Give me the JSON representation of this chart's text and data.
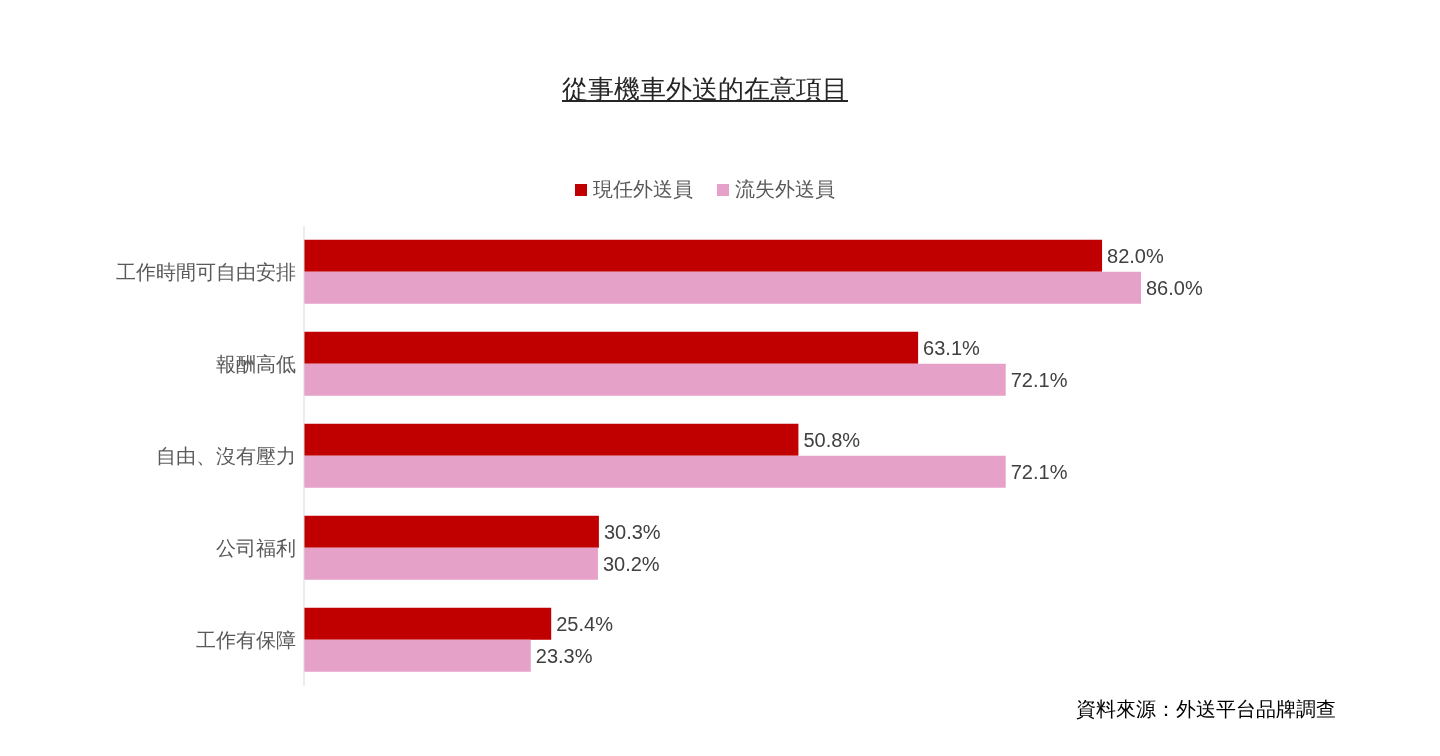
{
  "chart_data": {
    "type": "bar",
    "orientation": "horizontal",
    "title": "從事機車外送的在意項目",
    "categories": [
      "工作時間可自由安排",
      "報酬高低",
      "自由、沒有壓力",
      "公司福利",
      "工作有保障"
    ],
    "series": [
      {
        "name": "現任外送員",
        "color": "#c00000",
        "values": [
          82.0,
          63.1,
          50.8,
          30.3,
          25.4
        ],
        "value_labels": [
          "82.0%",
          "63.1%",
          "50.8%",
          "30.3%",
          "25.4%"
        ]
      },
      {
        "name": "流失外送員",
        "color": "#e6a1c8",
        "values": [
          86.0,
          72.1,
          72.1,
          30.2,
          23.3
        ],
        "value_labels": [
          "86.0%",
          "72.1%",
          "72.1%",
          "30.2%",
          "23.3%"
        ]
      }
    ],
    "tick_labels": "y",
    "grid": false,
    "legend": "top",
    "annotations": [
      "資料來源：外送平台品牌調查"
    ]
  }
}
